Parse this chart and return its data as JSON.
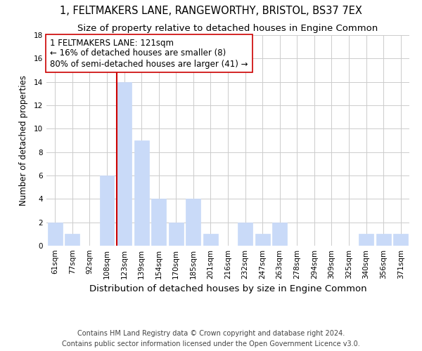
{
  "title": "1, FELTMAKERS LANE, RANGEWORTHY, BRISTOL, BS37 7EX",
  "subtitle": "Size of property relative to detached houses in Engine Common",
  "xlabel": "Distribution of detached houses by size in Engine Common",
  "ylabel": "Number of detached properties",
  "bar_labels": [
    "61sqm",
    "77sqm",
    "92sqm",
    "108sqm",
    "123sqm",
    "139sqm",
    "154sqm",
    "170sqm",
    "185sqm",
    "201sqm",
    "216sqm",
    "232sqm",
    "247sqm",
    "263sqm",
    "278sqm",
    "294sqm",
    "309sqm",
    "325sqm",
    "340sqm",
    "356sqm",
    "371sqm"
  ],
  "bar_values": [
    2,
    1,
    0,
    6,
    14,
    9,
    4,
    2,
    4,
    1,
    0,
    2,
    1,
    2,
    0,
    0,
    0,
    0,
    1,
    1,
    1
  ],
  "bar_color": "#c9daf8",
  "bar_edge_color": "#c9daf8",
  "property_line_color": "#cc0000",
  "annotation_line1": "1 FELTMAKERS LANE: 121sqm",
  "annotation_line2": "← 16% of detached houses are smaller (8)",
  "annotation_line3": "80% of semi-detached houses are larger (41) →",
  "annotation_box_color": "#ffffff",
  "annotation_box_edge_color": "#cc0000",
  "ylim": [
    0,
    18
  ],
  "yticks": [
    0,
    2,
    4,
    6,
    8,
    10,
    12,
    14,
    16,
    18
  ],
  "footer_line1": "Contains HM Land Registry data © Crown copyright and database right 2024.",
  "footer_line2": "Contains public sector information licensed under the Open Government Licence v3.0.",
  "background_color": "#ffffff",
  "grid_color": "#cccccc",
  "title_fontsize": 10.5,
  "subtitle_fontsize": 9.5,
  "xlabel_fontsize": 9.5,
  "ylabel_fontsize": 8.5,
  "tick_fontsize": 7.5,
  "annotation_fontsize": 8.5,
  "footer_fontsize": 7.0
}
